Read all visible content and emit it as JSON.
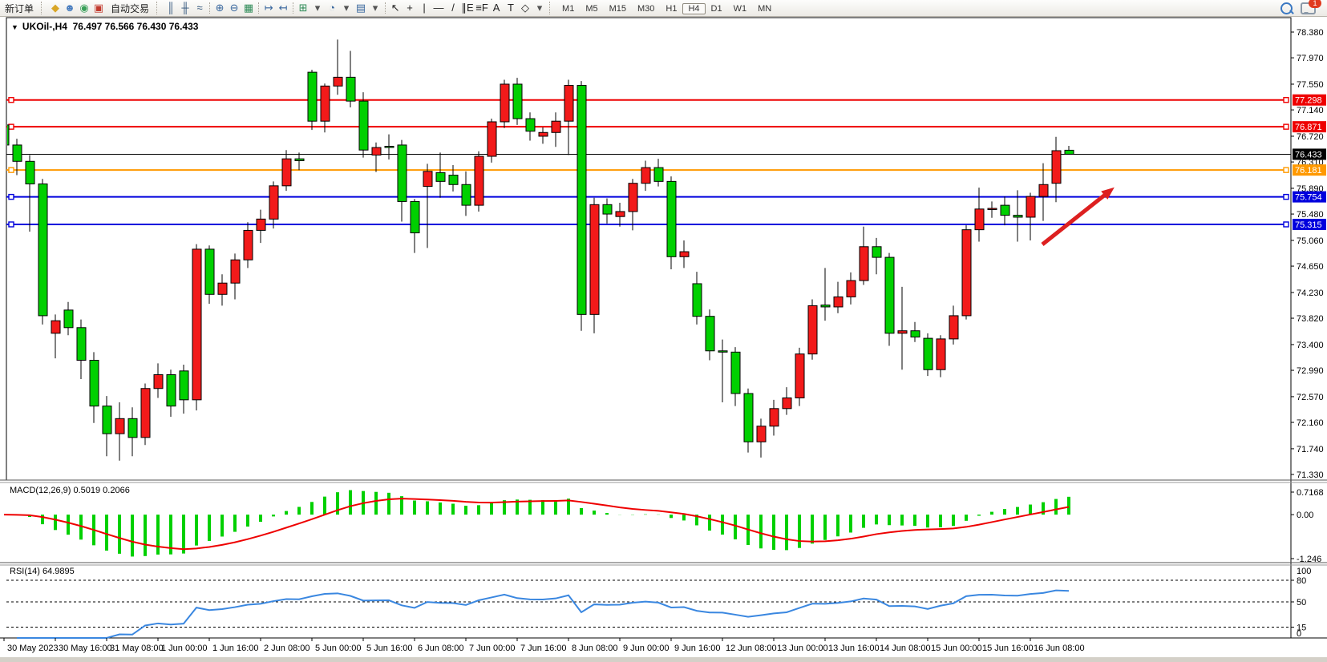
{
  "toolbar": {
    "new_order_label": "新订单",
    "auto_trading_label": "自动交易",
    "notification_count": "1",
    "icons": [
      {
        "name": "metaquotes-icon",
        "glyph": "◆",
        "color": "#d9a626"
      },
      {
        "name": "profile-icon",
        "glyph": "☻",
        "color": "#4a7ebf"
      },
      {
        "name": "community-icon",
        "glyph": "◉",
        "color": "#3aa05a"
      },
      {
        "name": "auto-trading-icon",
        "glyph": "▣",
        "color": "#c23a2e"
      }
    ],
    "chart_tool_icons": [
      {
        "name": "bar-chart-icon",
        "glyph": "║",
        "color": "#33567d"
      },
      {
        "name": "candlestick-chart-icon",
        "glyph": "╫",
        "color": "#33567d"
      },
      {
        "name": "line-chart-icon",
        "glyph": "≈",
        "color": "#33567d"
      },
      {
        "name": "separator",
        "glyph": "",
        "color": ""
      },
      {
        "name": "zoom-in-icon",
        "glyph": "⊕",
        "color": "#39679e"
      },
      {
        "name": "zoom-out-icon",
        "glyph": "⊖",
        "color": "#39679e"
      },
      {
        "name": "tile-windows-icon",
        "glyph": "▦",
        "color": "#2e8b57"
      },
      {
        "name": "separator",
        "glyph": "",
        "color": ""
      },
      {
        "name": "chart-shift-icon",
        "glyph": "↦",
        "color": "#39679e"
      },
      {
        "name": "auto-scroll-icon",
        "glyph": "↤",
        "color": "#39679e"
      },
      {
        "name": "separator",
        "glyph": "",
        "color": ""
      },
      {
        "name": "indicators-icon",
        "glyph": "⊞",
        "color": "#2e8b57"
      },
      {
        "name": "dropdown-arrow-icon",
        "glyph": "▾",
        "color": "#555"
      },
      {
        "name": "periods-icon",
        "glyph": "◔",
        "color": "#39679e"
      },
      {
        "name": "dropdown-arrow-icon",
        "glyph": "▾",
        "color": "#555"
      },
      {
        "name": "templates-icon",
        "glyph": "▤",
        "color": "#39679e"
      },
      {
        "name": "dropdown-arrow-icon",
        "glyph": "▾",
        "color": "#555"
      },
      {
        "name": "separator",
        "glyph": "",
        "color": ""
      },
      {
        "name": "cursor-icon",
        "glyph": "↖",
        "color": "#222"
      },
      {
        "name": "crosshair-icon",
        "glyph": "+",
        "color": "#222"
      },
      {
        "name": "vertical-line-icon",
        "glyph": "|",
        "color": "#222"
      },
      {
        "name": "horizontal-line-icon",
        "glyph": "—",
        "color": "#222"
      },
      {
        "name": "trendline-icon",
        "glyph": "/",
        "color": "#222"
      },
      {
        "name": "equidistant-channel-icon",
        "glyph": "∥E",
        "color": "#222"
      },
      {
        "name": "fibonacci-icon",
        "glyph": "≡F",
        "color": "#222"
      },
      {
        "name": "text-icon",
        "glyph": "A",
        "color": "#222"
      },
      {
        "name": "text-label-icon",
        "glyph": "T",
        "color": "#222"
      },
      {
        "name": "arrows-tool-icon",
        "glyph": "◇",
        "color": "#222"
      },
      {
        "name": "dropdown-arrow-icon",
        "glyph": "▾",
        "color": "#555"
      }
    ],
    "timeframes": [
      "M1",
      "M5",
      "M15",
      "M30",
      "H1",
      "H4",
      "D1",
      "W1",
      "MN"
    ],
    "active_timeframe": "H4"
  },
  "chart": {
    "title_symbol": "UKOil-,H4",
    "title_ohlc": "76.497 76.566 76.430 76.433"
  },
  "chart_data": {
    "type": "candlestick",
    "symbol": "UKOil-",
    "timeframe": "H4",
    "current_bar": {
      "open": "76.497",
      "high": "76.566",
      "low": "76.430",
      "close": "76.433"
    },
    "bull_color": "#f21a1a",
    "bear_color": "#00d000",
    "outline_color": "#000000",
    "candles": [
      [
        76.9,
        77.45,
        76.4,
        76.58
      ],
      [
        76.58,
        76.68,
        76.1,
        76.32
      ],
      [
        76.32,
        76.42,
        75.2,
        75.96
      ],
      [
        75.96,
        76.04,
        73.72,
        73.86
      ],
      [
        73.58,
        73.88,
        73.18,
        73.78
      ],
      [
        73.95,
        74.08,
        73.55,
        73.67
      ],
      [
        73.67,
        73.8,
        72.85,
        73.15
      ],
      [
        73.15,
        73.28,
        72.15,
        72.42
      ],
      [
        72.42,
        72.58,
        71.62,
        71.98
      ],
      [
        71.98,
        72.48,
        71.55,
        72.22
      ],
      [
        72.22,
        72.4,
        71.62,
        71.92
      ],
      [
        71.92,
        72.78,
        71.8,
        72.7
      ],
      [
        72.7,
        73.1,
        72.55,
        72.92
      ],
      [
        72.92,
        73.0,
        72.25,
        72.42
      ],
      [
        72.98,
        73.08,
        72.3,
        72.52
      ],
      [
        72.52,
        75.0,
        72.35,
        74.92
      ],
      [
        74.92,
        74.98,
        74.05,
        74.2
      ],
      [
        74.2,
        74.52,
        74.02,
        74.38
      ],
      [
        74.38,
        74.85,
        74.12,
        74.75
      ],
      [
        74.75,
        75.35,
        74.62,
        75.22
      ],
      [
        75.22,
        75.55,
        75.02,
        75.4
      ],
      [
        75.4,
        76.0,
        75.25,
        75.93
      ],
      [
        75.93,
        76.5,
        75.85,
        76.36
      ],
      [
        76.36,
        76.46,
        76.18,
        76.33
      ],
      [
        77.74,
        77.78,
        76.82,
        76.96
      ],
      [
        76.96,
        77.56,
        76.78,
        77.52
      ],
      [
        77.52,
        78.26,
        77.38,
        77.66
      ],
      [
        77.66,
        78.08,
        77.18,
        77.28
      ],
      [
        77.28,
        77.42,
        76.38,
        76.5
      ],
      [
        76.42,
        76.62,
        76.15,
        76.54
      ],
      [
        76.56,
        76.75,
        76.35,
        76.55
      ],
      [
        76.58,
        76.66,
        75.36,
        75.68
      ],
      [
        75.68,
        75.72,
        74.86,
        75.18
      ],
      [
        75.92,
        76.28,
        74.94,
        76.16
      ],
      [
        76.14,
        76.46,
        75.74,
        76.0
      ],
      [
        76.1,
        76.26,
        75.84,
        75.95
      ],
      [
        75.95,
        76.16,
        75.45,
        75.62
      ],
      [
        75.62,
        76.48,
        75.52,
        76.4
      ],
      [
        76.4,
        77.0,
        76.3,
        76.95
      ],
      [
        76.95,
        77.62,
        76.85,
        77.55
      ],
      [
        77.55,
        77.65,
        76.9,
        77.0
      ],
      [
        77.0,
        77.1,
        76.65,
        76.8
      ],
      [
        76.72,
        76.86,
        76.6,
        76.78
      ],
      [
        76.78,
        77.1,
        76.55,
        76.96
      ],
      [
        76.96,
        77.62,
        76.42,
        77.53
      ],
      [
        77.53,
        77.6,
        73.62,
        73.88
      ],
      [
        73.88,
        75.74,
        73.58,
        75.63
      ],
      [
        75.63,
        75.73,
        75.33,
        75.48
      ],
      [
        75.44,
        75.66,
        75.28,
        75.52
      ],
      [
        75.52,
        76.04,
        75.22,
        75.97
      ],
      [
        75.97,
        76.33,
        75.85,
        76.22
      ],
      [
        76.22,
        76.36,
        75.92,
        76.0
      ],
      [
        76.0,
        76.08,
        74.6,
        74.8
      ],
      [
        74.8,
        75.06,
        74.62,
        74.88
      ],
      [
        74.37,
        74.56,
        73.72,
        73.85
      ],
      [
        73.85,
        73.96,
        73.15,
        73.3
      ],
      [
        73.3,
        73.48,
        72.48,
        73.28
      ],
      [
        73.28,
        73.36,
        72.42,
        72.62
      ],
      [
        72.62,
        72.7,
        71.68,
        71.85
      ],
      [
        71.85,
        72.22,
        71.6,
        72.1
      ],
      [
        72.1,
        72.52,
        71.95,
        72.38
      ],
      [
        72.38,
        72.72,
        72.28,
        72.55
      ],
      [
        72.55,
        73.35,
        72.42,
        73.25
      ],
      [
        73.25,
        74.12,
        73.16,
        74.02
      ],
      [
        74.03,
        74.62,
        73.78,
        74.0
      ],
      [
        74.0,
        74.4,
        73.9,
        74.16
      ],
      [
        74.16,
        74.55,
        74.04,
        74.42
      ],
      [
        74.42,
        75.28,
        74.35,
        74.96
      ],
      [
        74.96,
        75.1,
        74.52,
        74.79
      ],
      [
        74.79,
        74.86,
        73.38,
        73.58
      ],
      [
        73.58,
        74.32,
        73.0,
        73.62
      ],
      [
        73.62,
        73.76,
        73.44,
        73.52
      ],
      [
        73.5,
        73.58,
        72.9,
        73.0
      ],
      [
        73.0,
        73.55,
        72.88,
        73.49
      ],
      [
        73.49,
        74.02,
        73.4,
        73.86
      ],
      [
        73.86,
        75.3,
        73.8,
        75.23
      ],
      [
        75.23,
        75.9,
        75.04,
        75.56
      ],
      [
        75.56,
        75.68,
        75.42,
        75.57
      ],
      [
        75.62,
        75.76,
        75.3,
        75.46
      ],
      [
        75.46,
        75.86,
        75.04,
        75.43
      ],
      [
        75.43,
        75.82,
        75.06,
        75.76
      ],
      [
        75.76,
        76.29,
        75.37,
        75.95
      ],
      [
        75.97,
        76.71,
        75.67,
        76.49
      ],
      [
        76.497,
        76.566,
        76.43,
        76.433
      ]
    ],
    "price_axis_ticks": [
      "78.380",
      "77.970",
      "77.550",
      "77.140",
      "76.720",
      "76.310",
      "75.890",
      "75.480",
      "75.060",
      "74.650",
      "74.230",
      "73.820",
      "73.400",
      "72.990",
      "72.570",
      "72.160",
      "71.740",
      "71.330"
    ],
    "time_axis_labels": [
      "30 May 2023",
      "30 May 16:00",
      "31 May 08:00",
      "1 Jun 00:00",
      "1 Jun 16:00",
      "2 Jun 08:00",
      "5 Jun 00:00",
      "5 Jun 16:00",
      "6 Jun 08:00",
      "7 Jun 00:00",
      "7 Jun 16:00",
      "8 Jun 08:00",
      "9 Jun 00:00",
      "9 Jun 16:00",
      "12 Jun 08:00",
      "13 Jun 00:00",
      "13 Jun 16:00",
      "14 Jun 08:00",
      "15 Jun 00:00",
      "15 Jun 16:00",
      "16 Jun 08:00"
    ],
    "hlines": [
      {
        "price": 77.298,
        "label": "77.298",
        "color": "#ee0000",
        "width": 2,
        "badge": "#ee0000"
      },
      {
        "price": 76.871,
        "label": "76.871",
        "color": "#ee0000",
        "width": 2,
        "badge": "#ee0000"
      },
      {
        "price": 76.181,
        "label": "76.181",
        "color": "#ff9900",
        "width": 2,
        "badge": "#ff9900"
      },
      {
        "price": 75.754,
        "label": "75.754",
        "color": "#0000dd",
        "width": 2,
        "badge": "#0000dd"
      },
      {
        "price": 75.315,
        "label": "75.315",
        "color": "#0000dd",
        "width": 2,
        "badge": "#0000dd"
      }
    ],
    "bid_line": {
      "price": 76.433,
      "label": "76.433",
      "color": "#000000",
      "badge": "#000000"
    },
    "indicators": {
      "macd": {
        "label": "MACD(12,26,9) 0.5019 0.2066",
        "params": "12,26,9",
        "value_main": "0.5019",
        "value_signal": "0.2066",
        "axis_labels": [
          "0.7168",
          "0.00",
          "-1.246"
        ],
        "histogram_color": "#00d000",
        "signal_color": "#ee0000"
      },
      "rsi": {
        "label": "RSI(14) 64.9895",
        "period": "14",
        "value": "64.9895",
        "axis_labels": [
          "100",
          "80",
          "50",
          "15",
          "0"
        ],
        "levels": [
          80,
          50,
          15
        ],
        "line_color": "#3a87e0"
      }
    },
    "annotation_arrow": {
      "color": "#dd2020",
      "from": [
        1300,
        305
      ],
      "to": [
        1382,
        240
      ]
    }
  }
}
